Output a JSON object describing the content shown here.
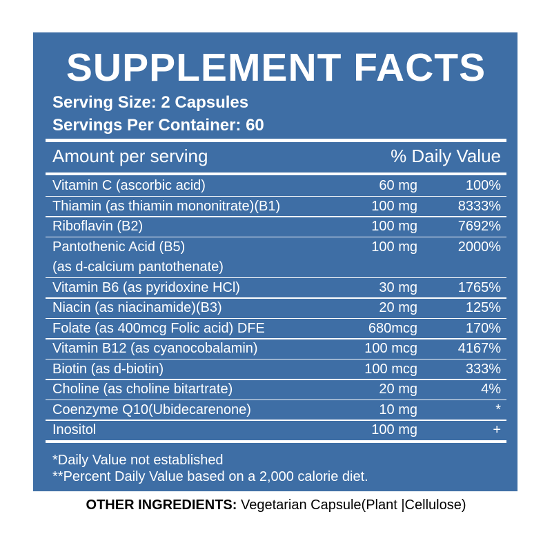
{
  "header": {
    "title": "SUPPLEMENT FACTS",
    "serving_size": "Serving Size: 2 Capsules",
    "servings_per_container": "Servings Per Container: 60"
  },
  "table": {
    "columns": [
      "Amount per serving",
      "% Daily Value"
    ],
    "rows": [
      {
        "name": [
          "Vitamin C (ascorbic acid)"
        ],
        "amount": "60 mg",
        "dv": "100%"
      },
      {
        "name": [
          "Thiamin (as thiamin mononitrate)(B1)"
        ],
        "amount": "100 mg",
        "dv": "8333%"
      },
      {
        "name": [
          "Riboflavin (B2)"
        ],
        "amount": "100 mg",
        "dv": "7692%"
      },
      {
        "name": [
          "Pantothenic Acid (B5)",
          "(as d-calcium pantothenate)"
        ],
        "amount": "100 mg",
        "dv": "2000%"
      },
      {
        "name": [
          "Vitamin B6 (as pyridoxine HCl)"
        ],
        "amount": "30 mg",
        "dv": "1765%"
      },
      {
        "name": [
          "Niacin (as niacinamide)(B3)"
        ],
        "amount": "20 mg",
        "dv": "125%"
      },
      {
        "name": [
          "Folate (as 400mcg Folic acid) DFE"
        ],
        "amount": "680mcg",
        "dv": "170%"
      },
      {
        "name": [
          "Vitamin B12 (as cyanocobalamin)"
        ],
        "amount": "100 mcg",
        "dv": "4167%"
      },
      {
        "name": [
          "Biotin (as d-biotin)"
        ],
        "amount": "100 mcg",
        "dv": "333%"
      },
      {
        "name": [
          "Choline (as choline bitartrate)"
        ],
        "amount": "20 mg",
        "dv": "4%"
      },
      {
        "name": [
          "Coenzyme Q10(Ubidecarenone)"
        ],
        "amount": "10 mg",
        "dv": "*"
      },
      {
        "name": [
          "Inositol"
        ],
        "amount": "100 mg",
        "dv": "+"
      }
    ]
  },
  "footnotes": [
    "*Daily Value not established",
    "**Percent Daily Value based on a 2,000 calorie diet."
  ],
  "other_ingredients": {
    "label": "OTHER INGREDIENTS:",
    "text": "Vegetarian Capsule(Plant |Cellulose)"
  }
}
